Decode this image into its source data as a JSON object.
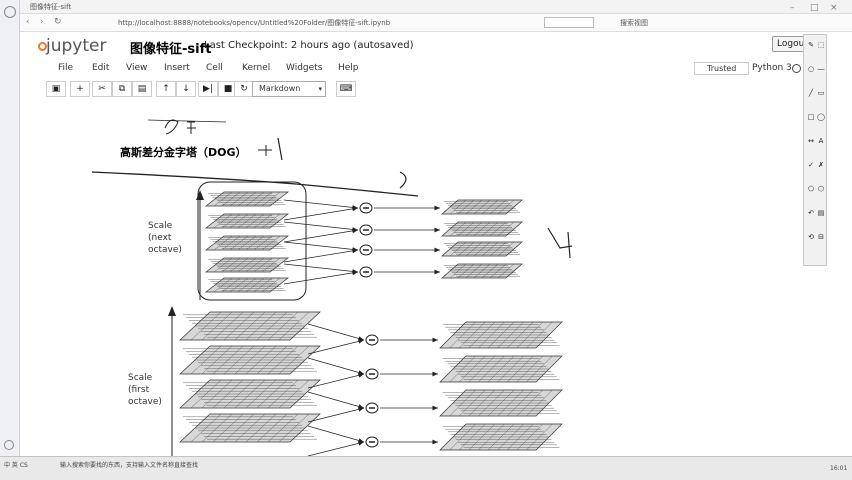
{
  "browser": {
    "tab_title": "图像特征-sift",
    "url": "http://localhost:8888/notebooks/opencv/Untitled%20Folder/图像特征-sift.ipynb",
    "search_label": "搜索视图"
  },
  "header": {
    "logo_text": "jupyter",
    "notebook_title": "图像特征-sift",
    "checkpoint": "Last Checkpoint: 2 hours ago (autosaved)",
    "logout": "Logout"
  },
  "menu": {
    "items": [
      "File",
      "Edit",
      "View",
      "Insert",
      "Cell",
      "Kernel",
      "Widgets",
      "Help"
    ],
    "trusted": "Trusted",
    "kernel": "Python 3"
  },
  "toolbar": {
    "cell_type": "Markdown"
  },
  "cell": {
    "heading": "高斯差分金字塔（DOG）",
    "scale_next": [
      "Scale",
      "(next",
      "octave)"
    ],
    "scale_first": [
      "Scale",
      "(first",
      "octave)"
    ]
  },
  "taskbar": {
    "left": "中 英 CS",
    "search_hint": "输入搜索你要找的东西，支持输入文件名称直接查找",
    "clock": "16:01"
  },
  "icons": {
    "save": "save-icon",
    "add": "plus-icon",
    "cut": "scissors-icon",
    "copy": "copy-icon",
    "paste": "paste-icon",
    "up": "arrow-up-icon",
    "down": "arrow-down-icon",
    "run": "step-icon",
    "stop": "stop-icon",
    "restart": "restart-icon",
    "keyboard": "keyboard-icon"
  }
}
